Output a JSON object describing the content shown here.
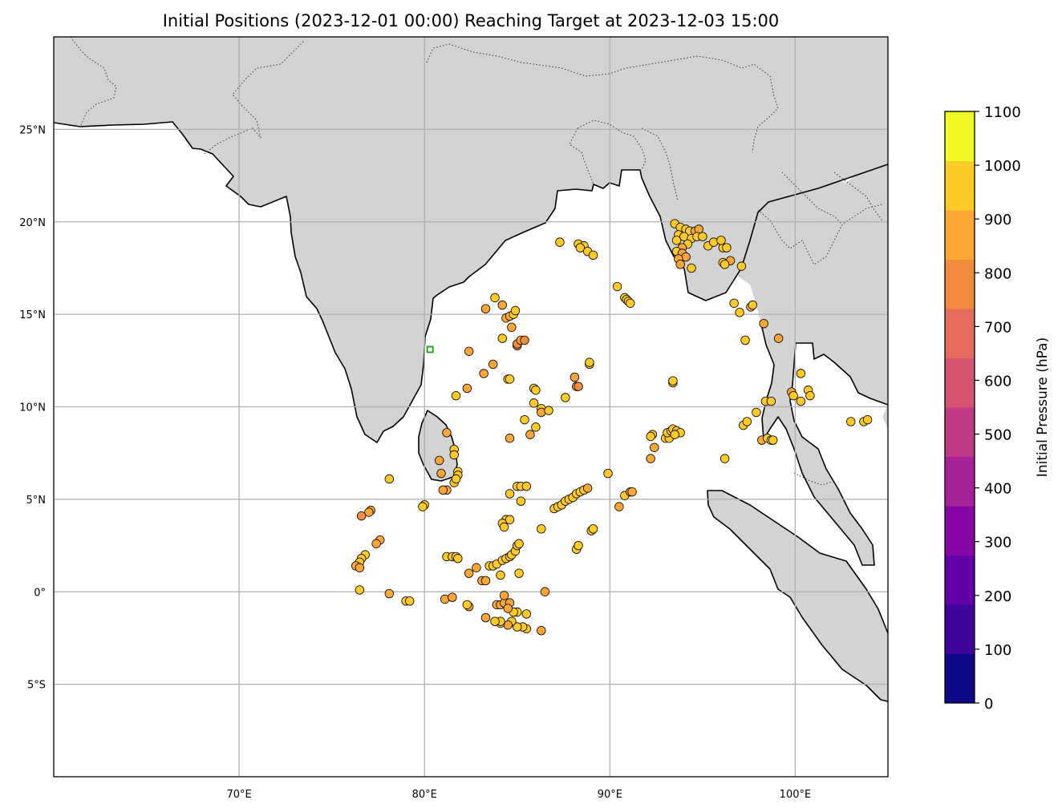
{
  "chart_data": {
    "type": "scatter",
    "title": "Initial Positions (2023-12-01 00:00) Reaching Target at 2023-12-03 15:00",
    "xlabel": "",
    "ylabel": "",
    "xlim": [
      60,
      105
    ],
    "ylim": [
      -10,
      30
    ],
    "x_ticks": [
      70,
      80,
      90,
      100
    ],
    "x_tick_labels": [
      "70°E",
      "80°E",
      "90°E",
      "100°E"
    ],
    "y_ticks": [
      25,
      20,
      15,
      10,
      5,
      0,
      -5
    ],
    "y_tick_labels": [
      "25°N",
      "20°N",
      "15°N",
      "10°N",
      "5°N",
      "0°",
      "5°S"
    ],
    "grid": true,
    "land_color": "#d3d3d3",
    "target_marker": {
      "lon": 80.3,
      "lat": 13.1,
      "color": "#2ca02c"
    },
    "colorbar": {
      "label": "Initial Pressure (hPa)",
      "cmap": "plasma",
      "min": 0,
      "max": 1100,
      "ticks": [
        0,
        100,
        200,
        300,
        400,
        500,
        600,
        700,
        800,
        900,
        1000,
        1100
      ],
      "tick_labels": [
        "0",
        "100",
        "200",
        "300",
        "400",
        "500",
        "600",
        "700",
        "800",
        "900",
        "1000",
        "1100"
      ],
      "colors": [
        "#0d0887",
        "#3e049c",
        "#6300a7",
        "#8606a6",
        "#a62098",
        "#c03a83",
        "#d5536f",
        "#e56b5d",
        "#f28c3c",
        "#fca636",
        "#fdca26",
        "#f0f921"
      ]
    },
    "points": [
      [
        93.5,
        19.9,
        980
      ],
      [
        93.8,
        19.7,
        950
      ],
      [
        94.1,
        19.6,
        940
      ],
      [
        94.3,
        19.5,
        930
      ],
      [
        94.6,
        19.5,
        900
      ],
      [
        94.8,
        19.6,
        910
      ],
      [
        93.7,
        19.3,
        930
      ],
      [
        94.0,
        19.2,
        940
      ],
      [
        94.4,
        19.1,
        920
      ],
      [
        94.7,
        19.2,
        950
      ],
      [
        95.0,
        19.2,
        930
      ],
      [
        93.6,
        19.0,
        940
      ],
      [
        94.2,
        18.8,
        930
      ],
      [
        93.9,
        18.6,
        880
      ],
      [
        93.6,
        18.4,
        920
      ],
      [
        93.9,
        18.3,
        900
      ],
      [
        94.1,
        18.1,
        860
      ],
      [
        93.7,
        18.0,
        850
      ],
      [
        93.8,
        17.7,
        880
      ],
      [
        94.4,
        17.5,
        930
      ],
      [
        95.3,
        18.7,
        930
      ],
      [
        95.6,
        18.9,
        950
      ],
      [
        96.1,
        18.6,
        930
      ],
      [
        96.0,
        19.0,
        930
      ],
      [
        96.3,
        18.6,
        930
      ],
      [
        96.1,
        17.8,
        930
      ],
      [
        96.5,
        17.9,
        900
      ],
      [
        96.2,
        17.7,
        950
      ],
      [
        97.1,
        17.6,
        930
      ],
      [
        88.3,
        18.8,
        940
      ],
      [
        88.6,
        18.7,
        940
      ],
      [
        88.4,
        18.6,
        960
      ],
      [
        88.8,
        18.4,
        950
      ],
      [
        89.1,
        18.2,
        970
      ],
      [
        87.3,
        18.9,
        930
      ],
      [
        90.4,
        16.5,
        940
      ],
      [
        90.8,
        15.9,
        950
      ],
      [
        90.9,
        15.8,
        950
      ],
      [
        91.0,
        15.7,
        960
      ],
      [
        91.1,
        15.6,
        980
      ],
      [
        83.8,
        15.9,
        920
      ],
      [
        83.3,
        15.3,
        910
      ],
      [
        84.2,
        15.5,
        900
      ],
      [
        84.4,
        14.8,
        880
      ],
      [
        84.6,
        14.9,
        900
      ],
      [
        84.8,
        15.0,
        920
      ],
      [
        84.9,
        15.2,
        930
      ],
      [
        84.7,
        14.3,
        900
      ],
      [
        84.2,
        13.7,
        920
      ],
      [
        85.0,
        13.3,
        800
      ],
      [
        85.0,
        13.4,
        820
      ],
      [
        85.2,
        13.6,
        840
      ],
      [
        85.4,
        13.6,
        800
      ],
      [
        82.4,
        13.0,
        910
      ],
      [
        83.7,
        12.3,
        850
      ],
      [
        83.2,
        11.8,
        870
      ],
      [
        84.5,
        11.5,
        930
      ],
      [
        84.6,
        11.5,
        950
      ],
      [
        82.3,
        11.0,
        860
      ],
      [
        85.9,
        11.0,
        940
      ],
      [
        86.0,
        10.9,
        950
      ],
      [
        81.7,
        10.6,
        930
      ],
      [
        85.9,
        10.2,
        930
      ],
      [
        86.3,
        9.9,
        920
      ],
      [
        86.3,
        9.7,
        910
      ],
      [
        86.7,
        9.8,
        930
      ],
      [
        85.4,
        9.3,
        930
      ],
      [
        86.0,
        8.9,
        920
      ],
      [
        85.7,
        8.5,
        910
      ],
      [
        84.6,
        8.3,
        880
      ],
      [
        81.2,
        8.6,
        880
      ],
      [
        81.6,
        7.7,
        950
      ],
      [
        81.6,
        7.4,
        950
      ],
      [
        80.8,
        7.1,
        900
      ],
      [
        81.8,
        6.5,
        930
      ],
      [
        81.8,
        6.3,
        940
      ],
      [
        81.6,
        5.9,
        930
      ],
      [
        81.7,
        6.1,
        940
      ],
      [
        81.2,
        5.5,
        900
      ],
      [
        81.0,
        5.5,
        910
      ],
      [
        80.9,
        6.4,
        900
      ],
      [
        80.0,
        4.7,
        930
      ],
      [
        79.9,
        4.6,
        920
      ],
      [
        78.1,
        6.1,
        960
      ],
      [
        77.1,
        4.4,
        900
      ],
      [
        77.0,
        4.3,
        850
      ],
      [
        76.6,
        4.1,
        800
      ],
      [
        77.6,
        2.8,
        860
      ],
      [
        77.4,
        2.6,
        850
      ],
      [
        76.8,
        2.0,
        930
      ],
      [
        76.6,
        1.8,
        940
      ],
      [
        76.5,
        1.6,
        930
      ],
      [
        76.3,
        1.4,
        910
      ],
      [
        76.5,
        1.3,
        900
      ],
      [
        76.5,
        0.1,
        970
      ],
      [
        78.1,
        -0.1,
        840
      ],
      [
        79.0,
        -0.5,
        920
      ],
      [
        79.2,
        -0.5,
        930
      ],
      [
        81.1,
        -0.4,
        880
      ],
      [
        81.5,
        -0.3,
        900
      ],
      [
        82.4,
        -0.8,
        910
      ],
      [
        82.3,
        -0.7,
        920
      ],
      [
        81.2,
        1.9,
        930
      ],
      [
        81.5,
        1.9,
        950
      ],
      [
        81.7,
        1.9,
        960
      ],
      [
        81.8,
        1.8,
        970
      ],
      [
        82.4,
        1.0,
        910
      ],
      [
        82.8,
        1.3,
        900
      ],
      [
        83.1,
        0.6,
        890
      ],
      [
        83.3,
        0.6,
        900
      ],
      [
        83.5,
        1.4,
        920
      ],
      [
        83.7,
        1.4,
        930
      ],
      [
        83.9,
        1.5,
        940
      ],
      [
        84.2,
        1.7,
        960
      ],
      [
        84.4,
        1.8,
        940
      ],
      [
        84.6,
        1.9,
        930
      ],
      [
        84.7,
        2.0,
        930
      ],
      [
        84.9,
        2.2,
        930
      ],
      [
        85.0,
        2.5,
        940
      ],
      [
        85.1,
        2.6,
        960
      ],
      [
        84.1,
        0.9,
        920
      ],
      [
        85.1,
        1.0,
        930
      ],
      [
        84.4,
        3.9,
        930
      ],
      [
        84.2,
        3.7,
        920
      ],
      [
        84.3,
        3.5,
        930
      ],
      [
        84.6,
        3.9,
        920
      ],
      [
        84.6,
        5.3,
        970
      ],
      [
        85.0,
        5.7,
        960
      ],
      [
        85.2,
        5.7,
        980
      ],
      [
        85.5,
        5.7,
        970
      ],
      [
        85.2,
        4.9,
        930
      ],
      [
        86.3,
        3.4,
        980
      ],
      [
        87.0,
        4.5,
        960
      ],
      [
        87.2,
        4.6,
        950
      ],
      [
        87.4,
        4.7,
        950
      ],
      [
        87.6,
        4.9,
        960
      ],
      [
        87.8,
        5.0,
        940
      ],
      [
        88.0,
        5.1,
        940
      ],
      [
        88.2,
        5.3,
        930
      ],
      [
        88.4,
        5.4,
        930
      ],
      [
        88.6,
        5.5,
        920
      ],
      [
        88.8,
        5.6,
        910
      ],
      [
        89.0,
        3.3,
        940
      ],
      [
        89.1,
        3.4,
        930
      ],
      [
        88.2,
        2.3,
        920
      ],
      [
        88.3,
        2.5,
        930
      ],
      [
        89.9,
        6.4,
        980
      ],
      [
        90.5,
        4.6,
        900
      ],
      [
        90.8,
        5.2,
        920
      ],
      [
        91.1,
        5.4,
        850
      ],
      [
        91.2,
        5.4,
        880
      ],
      [
        87.6,
        10.5,
        970
      ],
      [
        88.2,
        11.1,
        870
      ],
      [
        88.1,
        11.6,
        910
      ],
      [
        88.3,
        11.1,
        820
      ],
      [
        88.9,
        12.3,
        930
      ],
      [
        88.9,
        12.4,
        940
      ],
      [
        86.5,
        0.0,
        850
      ],
      [
        86.3,
        -2.1,
        910
      ],
      [
        85.5,
        -2.0,
        920
      ],
      [
        85.3,
        -1.9,
        930
      ],
      [
        85.0,
        -1.9,
        920
      ],
      [
        85.5,
        -1.2,
        940
      ],
      [
        85.0,
        -1.1,
        940
      ],
      [
        84.8,
        -1.1,
        950
      ],
      [
        84.7,
        -1.6,
        920
      ],
      [
        84.5,
        -1.8,
        900
      ],
      [
        84.1,
        -1.7,
        920
      ],
      [
        84.1,
        -1.6,
        930
      ],
      [
        83.9,
        -0.7,
        860
      ],
      [
        84.1,
        -0.7,
        870
      ],
      [
        84.3,
        -0.6,
        880
      ],
      [
        84.3,
        -0.2,
        860
      ],
      [
        84.6,
        -0.6,
        880
      ],
      [
        84.5,
        -0.9,
        870
      ],
      [
        83.8,
        -1.6,
        920
      ],
      [
        83.3,
        -1.4,
        880
      ],
      [
        93.4,
        11.3,
        980
      ],
      [
        93.4,
        11.4,
        990
      ],
      [
        92.3,
        8.5,
        950
      ],
      [
        92.2,
        8.4,
        920
      ],
      [
        92.4,
        7.8,
        900
      ],
      [
        92.2,
        7.2,
        880
      ],
      [
        93.0,
        8.3,
        940
      ],
      [
        93.2,
        8.3,
        950
      ],
      [
        93.1,
        8.6,
        960
      ],
      [
        93.3,
        8.7,
        960
      ],
      [
        93.4,
        8.8,
        970
      ],
      [
        93.6,
        8.7,
        960
      ],
      [
        93.8,
        8.6,
        950
      ],
      [
        93.5,
        8.5,
        940
      ],
      [
        96.2,
        7.2,
        920
      ],
      [
        96.7,
        15.6,
        930
      ],
      [
        97.0,
        15.1,
        940
      ],
      [
        97.6,
        15.4,
        900
      ],
      [
        97.7,
        15.5,
        930
      ],
      [
        97.3,
        13.6,
        920
      ],
      [
        99.1,
        13.7,
        860
      ],
      [
        98.3,
        14.5,
        900
      ],
      [
        100.3,
        11.8,
        960
      ],
      [
        100.7,
        10.9,
        930
      ],
      [
        100.8,
        10.6,
        920
      ],
      [
        99.8,
        10.8,
        900
      ],
      [
        99.9,
        10.6,
        930
      ],
      [
        100.3,
        10.3,
        950
      ],
      [
        98.4,
        10.3,
        920
      ],
      [
        98.7,
        10.3,
        940
      ],
      [
        97.9,
        9.7,
        930
      ],
      [
        97.2,
        9.0,
        940
      ],
      [
        97.4,
        9.2,
        950
      ],
      [
        98.2,
        8.2,
        910
      ],
      [
        98.5,
        8.3,
        930
      ],
      [
        98.7,
        8.2,
        920
      ],
      [
        98.8,
        8.2,
        940
      ],
      [
        103.0,
        9.2,
        930
      ],
      [
        103.7,
        9.2,
        940
      ],
      [
        103.9,
        9.3,
        930
      ]
    ]
  }
}
